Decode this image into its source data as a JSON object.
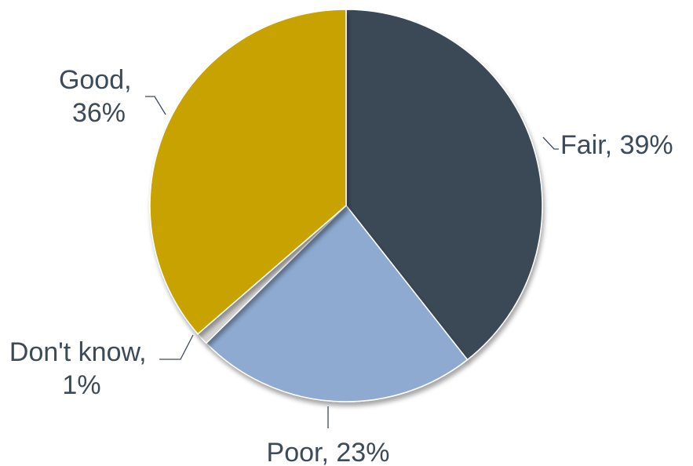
{
  "chart_data": {
    "type": "pie",
    "title": "",
    "slices": [
      {
        "label": "Fair",
        "value": 39,
        "display": "39%",
        "color": "#3b4957"
      },
      {
        "label": "Poor",
        "value": 23,
        "display": "23%",
        "color": "#8eaad1"
      },
      {
        "label": "Don't know",
        "value": 1,
        "display": "1%",
        "color": "#d4d4d4"
      },
      {
        "label": "Good",
        "value": 36,
        "display": "36%",
        "color": "#c8a300"
      }
    ],
    "start_direction": "top",
    "order": "clockwise",
    "label_lines": [
      [
        "Fair, 39%"
      ],
      [
        "Poor, 23%"
      ],
      [
        "Don't know,",
        "1%"
      ],
      [
        "Good,",
        "36%"
      ]
    ]
  }
}
